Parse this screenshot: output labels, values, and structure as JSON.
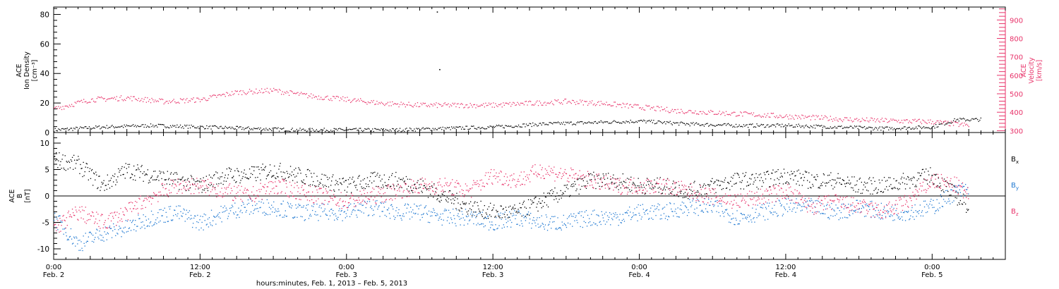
{
  "chart_data": [
    {
      "type": "scatter",
      "panel": "top",
      "ylabel_left": [
        "ACE",
        "Ion Density",
        "[cm⁻³]"
      ],
      "ylabel_right": [
        "ACE",
        "Velocity",
        "[km/s]"
      ],
      "ylim_left": [
        0,
        85
      ],
      "yticks_left": [
        0,
        20,
        40,
        60,
        80
      ],
      "ylim_right": [
        290,
        970
      ],
      "yticks_right": [
        300,
        400,
        500,
        600,
        700,
        800,
        900
      ],
      "x_unit": "hours since Feb. 2 00:00",
      "xlim": [
        0,
        78
      ],
      "series": [
        {
          "name": "Ion Density",
          "axis": "left",
          "color": "#000000",
          "x": [
            0,
            4,
            8,
            12,
            16,
            20,
            24,
            28,
            32,
            36,
            40,
            44,
            48,
            52,
            56,
            60,
            64,
            68,
            72,
            74,
            76
          ],
          "y": [
            2,
            4,
            5,
            4,
            3,
            2,
            2,
            2,
            3,
            4,
            6,
            7,
            8,
            6,
            5,
            5,
            4,
            3,
            4,
            9,
            9
          ]
        },
        {
          "name": "Velocity",
          "axis": "right",
          "color": "#e8336a",
          "x": [
            0,
            3,
            6,
            9,
            12,
            15,
            18,
            21,
            24,
            27,
            30,
            33,
            36,
            39,
            42,
            45,
            48,
            51,
            54,
            57,
            60,
            63,
            66,
            69,
            72,
            75
          ],
          "y": [
            420,
            470,
            480,
            460,
            470,
            510,
            520,
            490,
            470,
            450,
            440,
            440,
            440,
            450,
            460,
            450,
            430,
            410,
            400,
            390,
            380,
            370,
            360,
            355,
            350,
            330
          ]
        }
      ],
      "isolated_points": [
        {
          "series": "Ion Density",
          "x": [
            31.4,
            31.6
          ],
          "y": [
            82,
            43
          ]
        }
      ]
    },
    {
      "type": "scatter",
      "panel": "bottom",
      "ylabel_left": [
        "ACE",
        "B",
        "[nT]"
      ],
      "ylim": [
        -12,
        12
      ],
      "yticks": [
        -10,
        -5,
        0,
        5,
        10
      ],
      "zero_line": true,
      "x_unit": "hours since Feb. 2 00:00",
      "xlim": [
        0,
        78
      ],
      "legend": [
        "Bx",
        "By",
        "Bz"
      ],
      "series": [
        {
          "name": "Bx",
          "color": "#000000",
          "x": [
            0,
            2,
            4,
            6,
            8,
            10,
            12,
            14,
            16,
            18,
            20,
            22,
            24,
            26,
            28,
            30,
            32,
            34,
            36,
            38,
            40,
            42,
            44,
            46,
            48,
            50,
            52,
            54,
            56,
            58,
            60,
            62,
            64,
            66,
            68,
            70,
            72,
            74,
            75
          ],
          "y": [
            7,
            6,
            2,
            5,
            4,
            3,
            2,
            4,
            4,
            5,
            4,
            3,
            2,
            3,
            3,
            2,
            0,
            -2,
            -3,
            -3,
            -1,
            1,
            3,
            3,
            2,
            2,
            1,
            2,
            3,
            3,
            4,
            3,
            3,
            2,
            2,
            3,
            4,
            0,
            -2
          ]
        },
        {
          "name": "By",
          "color": "#1f78d1",
          "x": [
            0,
            2,
            4,
            6,
            8,
            10,
            12,
            14,
            16,
            18,
            20,
            22,
            24,
            26,
            28,
            30,
            32,
            34,
            36,
            38,
            40,
            42,
            44,
            46,
            48,
            50,
            52,
            54,
            56,
            58,
            60,
            62,
            64,
            66,
            68,
            70,
            72,
            74,
            75
          ],
          "y": [
            -4,
            -9,
            -7,
            -6,
            -4,
            -3,
            -5,
            -3,
            -2,
            -2,
            -3,
            -3,
            -3,
            -2,
            -3,
            -3,
            -4,
            -4,
            -5,
            -4,
            -5,
            -5,
            -4,
            -4,
            -3,
            -3,
            -2,
            -2,
            -4,
            -3,
            -2,
            -2,
            -3,
            -2,
            -3,
            -3,
            -2,
            1,
            1
          ]
        },
        {
          "name": "Bz",
          "color": "#e8336a",
          "x": [
            0,
            2,
            4,
            6,
            8,
            10,
            12,
            14,
            16,
            18,
            20,
            22,
            24,
            26,
            28,
            30,
            32,
            34,
            36,
            38,
            40,
            42,
            44,
            46,
            48,
            50,
            52,
            54,
            56,
            58,
            60,
            62,
            64,
            66,
            68,
            70,
            72,
            74,
            75
          ],
          "y": [
            -6,
            -3,
            -5,
            -3,
            0,
            2,
            2,
            1,
            0,
            2,
            1,
            0,
            -1,
            0,
            1,
            2,
            2,
            1,
            4,
            3,
            5,
            4,
            3,
            2,
            2,
            2,
            1,
            0,
            -1,
            0,
            1,
            -2,
            -1,
            -2,
            -3,
            -1,
            3,
            2,
            0
          ]
        }
      ]
    }
  ],
  "x_axis": {
    "ticks": [
      {
        "hour": 0,
        "time": "0:00",
        "date": "Feb. 2"
      },
      {
        "hour": 12,
        "time": "12:00",
        "date": "Feb. 2"
      },
      {
        "hour": 24,
        "time": "0:00",
        "date": "Feb. 3"
      },
      {
        "hour": 36,
        "time": "12:00",
        "date": "Feb. 3"
      },
      {
        "hour": 48,
        "time": "0:00",
        "date": "Feb. 4"
      },
      {
        "hour": 60,
        "time": "12:00",
        "date": "Feb. 4"
      },
      {
        "hour": 72,
        "time": "0:00",
        "date": "Feb. 5"
      }
    ],
    "label": "hours:minutes, Feb.  1, 2013 – Feb.  5, 2013"
  },
  "colors": {
    "black": "#000000",
    "pink": "#e8336a",
    "blue": "#1f78d1"
  }
}
